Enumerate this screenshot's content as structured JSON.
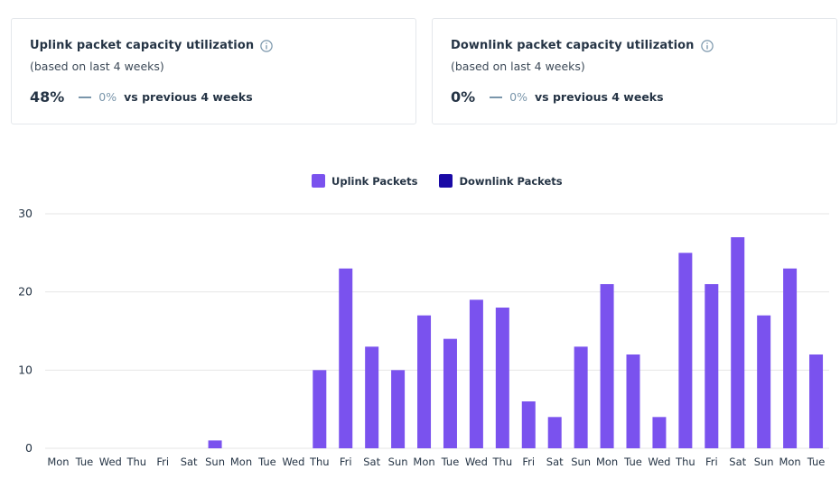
{
  "cards": [
    {
      "title": "Uplink packet capacity utilization",
      "subtitle": "(based on last 4 weeks)",
      "value": "48%",
      "delta": "0%",
      "comparison": "vs previous 4 weeks"
    },
    {
      "title": "Downlink packet capacity utilization",
      "subtitle": "(based on last 4 weeks)",
      "value": "0%",
      "delta": "0%",
      "comparison": "vs previous 4 weeks"
    }
  ],
  "icons": {
    "info": "info-icon",
    "trend": "dash-icon"
  },
  "colors": {
    "uplink": "#7a52ee",
    "downlink": "#1a0aa6",
    "delta": "#7a96ab",
    "grid": "#e6e6e6"
  },
  "chart_data": {
    "type": "bar",
    "categories": [
      "Mon",
      "Tue",
      "Wed",
      "Thu",
      "Fri",
      "Sat",
      "Sun",
      "Mon",
      "Tue",
      "Wed",
      "Thu",
      "Fri",
      "Sat",
      "Sun",
      "Mon",
      "Tue",
      "Wed",
      "Thu",
      "Fri",
      "Sat",
      "Sun",
      "Mon",
      "Tue",
      "Wed",
      "Thu",
      "Fri",
      "Sat",
      "Sun",
      "Mon",
      "Tue"
    ],
    "series": [
      {
        "name": "Uplink Packets",
        "values": [
          0,
          0,
          0,
          0,
          0,
          0,
          1,
          0,
          0,
          0,
          10,
          23,
          13,
          10,
          17,
          14,
          19,
          18,
          6,
          4,
          13,
          21,
          12,
          4,
          25,
          21,
          27,
          17,
          23,
          12
        ]
      },
      {
        "name": "Downlink Packets",
        "values": [
          0,
          0,
          0,
          0,
          0,
          0,
          0,
          0,
          0,
          0,
          0,
          0,
          0,
          0,
          0,
          0,
          0,
          0,
          0,
          0,
          0,
          0,
          0,
          0,
          0,
          0,
          0,
          0,
          0,
          0
        ]
      }
    ],
    "yticks": [
      0,
      10,
      20,
      30
    ],
    "ylim": [
      0,
      30
    ],
    "grid": true,
    "legend": "top-center"
  }
}
